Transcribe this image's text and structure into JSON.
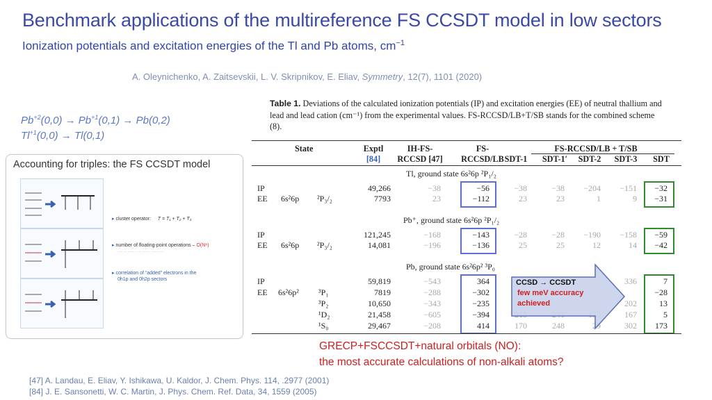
{
  "slide": {
    "title": "Benchmark applications of the multireference  FS CCSDT model in low sectors",
    "subtitle": "Ionization potentials and excitation energies of the Tl and Pb atoms, cm",
    "subtitle_sup": "−1",
    "citation": {
      "authors": "A. Oleynichenko, A. Zaitsevskii, L. V. Skripnikov, E. Eliav, ",
      "journal": "Symmetry",
      "details": ", 12(7), 1101 (2020)"
    },
    "sectors": {
      "line1": {
        "a": "Pb",
        "a_sup": "+2",
        "b": "(0,0) → Pb",
        "b_sup": "+1",
        "c": "(0,1) → Pb(0,2)"
      },
      "line2": {
        "a": "Tl",
        "a_sup": "+1",
        "b": "(0,0) → Tl(0,1)"
      }
    }
  },
  "thumbnail": {
    "title": "Accounting for triples: the FS CCSDT model",
    "bullet1_label": "cluster operator:",
    "bullet1_formula": "T = T₁ + T₂ + T₃",
    "bullet2_label": "number of floating-point operations – ",
    "bullet2_value": "O(N⁸)",
    "bullet3_line1": "correlation of “added” electrons in the",
    "bullet3_line2": "0h1p and 0h2p sectors"
  },
  "table": {
    "caption_label": "Table 1.",
    "caption_text": " Deviations of the calculated ionization potentials (IP) and excitation energies (EE) of neutral thallium and lead and lead cation (cm⁻¹) from the experimental values. FS-RCCSD/LB+T/SB stands for the combined scheme (8).",
    "headers": {
      "state": "State",
      "exptl": "Exptl",
      "exptl_ref": "[84]",
      "ih": "IH-FS-",
      "ih2": "RCCSD [47]",
      "fs": "FS-",
      "fs2": "RCCSD/LB",
      "group": "FS-RCCSD/LB + T/SB",
      "sdt1": "SDT-1",
      "sdt1p": "SDT-1′",
      "sdt2": "SDT-2",
      "sdt3": "SDT-3",
      "sdt": "SDT"
    },
    "sections": [
      {
        "label": "Tl, ground state 6s²6p  ²P₁/₂",
        "rows": [
          {
            "type": "IP",
            "config": "",
            "term": "",
            "exptl": "49,266",
            "ih": "−38",
            "fs": "−56",
            "sdt1": "−38",
            "sdt1p": "−38",
            "sdt2": "−204",
            "sdt3": "−151",
            "sdt": "−32"
          },
          {
            "type": "EE",
            "config": "6s²6p",
            "term": "²P₃/₂",
            "exptl": "7793",
            "ih": "23",
            "fs": "−112",
            "sdt1": "23",
            "sdt1p": "23",
            "sdt2": "1",
            "sdt3": "9",
            "sdt": "−31"
          }
        ]
      },
      {
        "label": "Pb⁺, ground state 6s²6p  ²P₁/₂",
        "rows": [
          {
            "type": "IP",
            "config": "",
            "term": "",
            "exptl": "121,245",
            "ih": "−168",
            "fs": "−143",
            "sdt1": "−28",
            "sdt1p": "−28",
            "sdt2": "−190",
            "sdt3": "−158",
            "sdt": "−59"
          },
          {
            "type": "EE",
            "config": "6s²6p",
            "term": "²P₃/₂",
            "exptl": "14,081",
            "ih": "−196",
            "fs": "−136",
            "sdt1": "25",
            "sdt1p": "25",
            "sdt2": "12",
            "sdt3": "14",
            "sdt": "−42"
          }
        ]
      },
      {
        "label": "Pb, ground state 6s²6p²  ³P₀",
        "rows": [
          {
            "type": "IP",
            "config": "",
            "term": "",
            "exptl": "59,819",
            "ih": "−543",
            "fs": "364",
            "sdt1": "",
            "sdt1p": "",
            "sdt2": "",
            "sdt3": "336",
            "sdt": "7"
          },
          {
            "type": "EE",
            "config": "6s²6p²",
            "term": "³P₁",
            "exptl": "7819",
            "ih": "−288",
            "fs": "−302",
            "sdt1": "",
            "sdt1p": "",
            "sdt2": "",
            "sdt3": "",
            "sdt": "−28"
          },
          {
            "type": "",
            "config": "",
            "term": "³P₂",
            "exptl": "10,650",
            "ih": "−343",
            "fs": "−235",
            "sdt1": "",
            "sdt1p": "",
            "sdt2": "",
            "sdt3": "202",
            "sdt": "13"
          },
          {
            "type": "",
            "config": "",
            "term": "¹D₂",
            "exptl": "21,458",
            "ih": "−605",
            "fs": "−394",
            "sdt1": "215",
            "sdt1p": "241",
            "sdt2": "135",
            "sdt3": "167",
            "sdt": "5"
          },
          {
            "type": "",
            "config": "",
            "term": "¹S₀",
            "exptl": "29,467",
            "ih": "−208",
            "fs": "414",
            "sdt1": "170",
            "sdt1p": "248",
            "sdt2": "29",
            "sdt3": "302",
            "sdt": "173"
          }
        ]
      }
    ]
  },
  "callout": {
    "line1": "CCSD → CCSDT",
    "line2": "few meV accuracy",
    "line3": "achieved"
  },
  "conclusion": {
    "line1": "GRECP+FSCCSDT+natural orbitals (NO):",
    "line2": "the most accurate calculations of non-alkali atoms?"
  },
  "references": {
    "ref47": "[47] A. Landau, E. Eliav, Y. Ishikawa, U. Kaldor, J. Chem. Phys. 114, .2977 (2001)",
    "ref84": "[84] J. E. Sansonetti, W. C. Martin, J. Phys. Chem. Ref. Data, 34, 1559 (2005)"
  },
  "colors": {
    "title": "#3b4aa8",
    "blue_box": "#5a6fd8",
    "green_box": "#2e8b2e",
    "conclusion": "#cc2020"
  }
}
